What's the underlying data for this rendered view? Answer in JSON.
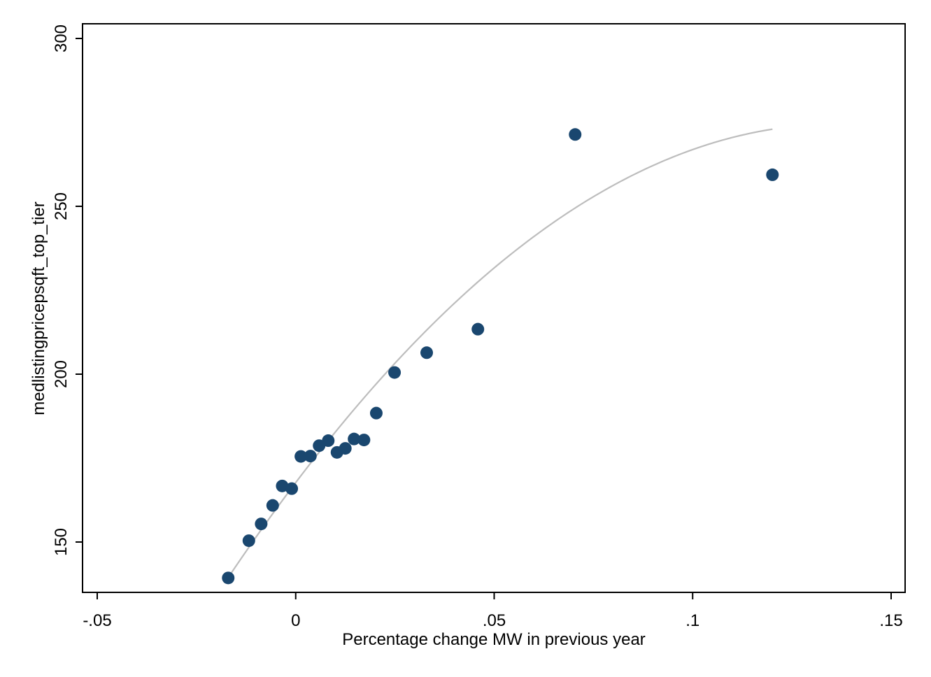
{
  "chart_data": {
    "type": "scatter",
    "title": "",
    "xlabel": "Percentage change MW in previous year",
    "ylabel": "medlistingpricepsqft_top_tier",
    "xlim": [
      -0.05,
      0.15
    ],
    "ylim": [
      150,
      300
    ],
    "x_ticks": [
      {
        "value": -0.05,
        "label": "-.05"
      },
      {
        "value": 0,
        "label": "0"
      },
      {
        "value": 0.05,
        "label": ".05"
      },
      {
        "value": 0.1,
        "label": ".1"
      },
      {
        "value": 0.15,
        "label": ".15"
      }
    ],
    "y_ticks": [
      {
        "value": 150,
        "label": "150"
      },
      {
        "value": 200,
        "label": "200"
      },
      {
        "value": 250,
        "label": "250"
      },
      {
        "value": 300,
        "label": "300"
      }
    ],
    "grid": false,
    "legend": "none",
    "marker_color": "#1a476f",
    "fit_color": "#bdbdbd",
    "points": [
      {
        "x": -0.017,
        "y": 139.3
      },
      {
        "x": -0.0118,
        "y": 150.4
      },
      {
        "x": -0.0087,
        "y": 155.4
      },
      {
        "x": -0.0058,
        "y": 160.9
      },
      {
        "x": -0.0034,
        "y": 166.7
      },
      {
        "x": -0.001,
        "y": 165.9
      },
      {
        "x": 0.0013,
        "y": 175.5
      },
      {
        "x": 0.0037,
        "y": 175.6
      },
      {
        "x": 0.0059,
        "y": 178.7
      },
      {
        "x": 0.0082,
        "y": 180.2
      },
      {
        "x": 0.0104,
        "y": 176.7
      },
      {
        "x": 0.0125,
        "y": 177.9
      },
      {
        "x": 0.0147,
        "y": 180.7
      },
      {
        "x": 0.0172,
        "y": 180.4
      },
      {
        "x": 0.0203,
        "y": 188.4
      },
      {
        "x": 0.0249,
        "y": 200.5
      },
      {
        "x": 0.033,
        "y": 206.4
      },
      {
        "x": 0.0459,
        "y": 213.4
      },
      {
        "x": 0.0704,
        "y": 271.4
      },
      {
        "x": 0.1201,
        "y": 259.4
      }
    ],
    "fit": {
      "type": "quadratic",
      "x_range": [
        -0.017,
        0.1201
      ],
      "coefficients": [
        167.7,
        1566,
        -5740
      ]
    }
  }
}
